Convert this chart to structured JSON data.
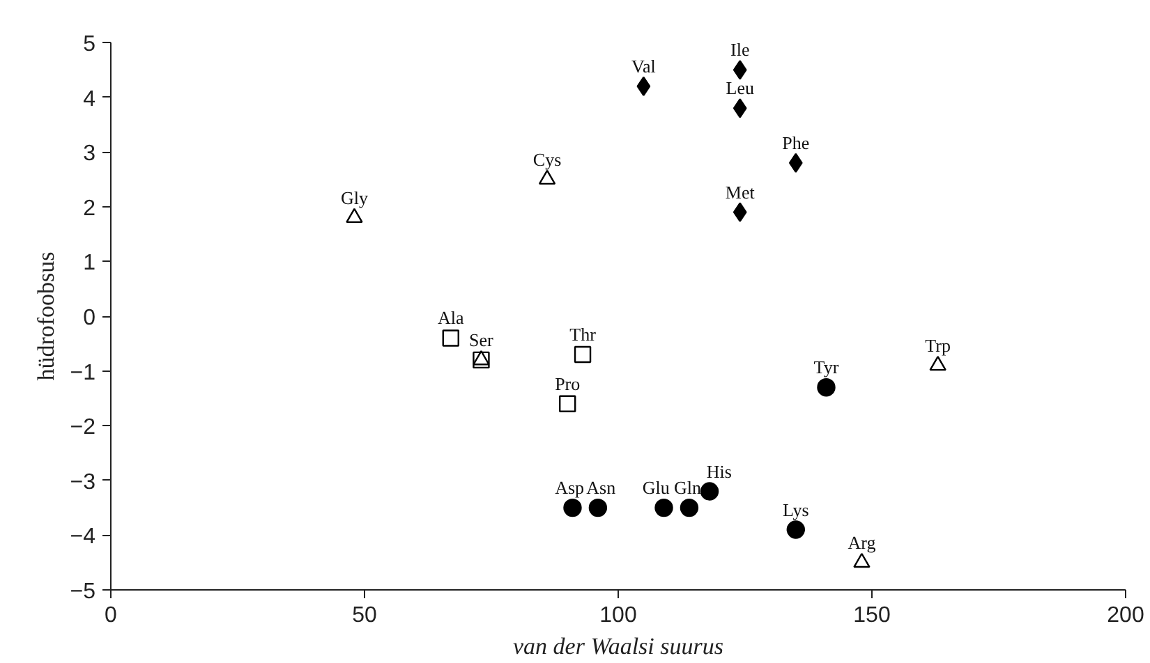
{
  "chart_data": {
    "type": "scatter",
    "xlabel": "van der Waalsi suurus",
    "ylabel": "hüdrofoobsus",
    "xlim": [
      0,
      200
    ],
    "xticks": [
      0,
      50,
      100,
      150,
      200
    ],
    "ylim": [
      -5,
      5
    ],
    "yticks": [
      -5,
      -4,
      -3,
      -2,
      -1,
      0,
      1,
      2,
      3,
      4,
      5
    ],
    "grid": false,
    "series": [
      {
        "marker": "diamond",
        "color": "#000000",
        "x": [
          105,
          124,
          124,
          135,
          124
        ],
        "values": [
          4.2,
          4.5,
          3.8,
          2.8,
          1.9
        ]
      },
      {
        "marker": "triangle",
        "color": "#000000",
        "x": [
          48,
          86,
          73,
          163,
          148
        ],
        "values": [
          1.8,
          2.5,
          -0.8,
          -0.9,
          -4.5
        ]
      },
      {
        "marker": "square",
        "color": "#000000",
        "x": [
          67,
          73,
          93,
          90
        ],
        "values": [
          -0.4,
          -0.8,
          -0.7,
          -1.6
        ]
      },
      {
        "marker": "circle",
        "color": "#000000",
        "x": [
          91,
          96,
          109,
          114,
          118,
          135,
          141
        ],
        "values": [
          -3.5,
          -3.5,
          -3.5,
          -3.5,
          -3.2,
          -3.9,
          -1.3
        ]
      }
    ],
    "annotations": [
      {
        "text": "Val",
        "x": 105,
        "y": 4.2
      },
      {
        "text": "Ile",
        "x": 124,
        "y": 4.5
      },
      {
        "text": "Leu",
        "x": 124,
        "y": 3.8
      },
      {
        "text": "Phe",
        "x": 135,
        "y": 2.8
      },
      {
        "text": "Met",
        "x": 124,
        "y": 1.9
      },
      {
        "text": "Gly",
        "x": 48,
        "y": 1.8
      },
      {
        "text": "Cys",
        "x": 86,
        "y": 2.5
      },
      {
        "text": "Trp",
        "x": 163,
        "y": -0.9
      },
      {
        "text": "Arg",
        "x": 148,
        "y": -4.5
      },
      {
        "text": "Ala",
        "x": 67,
        "y": -0.4
      },
      {
        "text": "Ser",
        "x": 73,
        "y": -0.8
      },
      {
        "text": "Thr",
        "x": 93,
        "y": -0.7
      },
      {
        "text": "Pro",
        "x": 90,
        "y": -1.6
      },
      {
        "text": "Asp",
        "x": 91,
        "y": -3.5
      },
      {
        "text": "Asn",
        "x": 96,
        "y": -3.5
      },
      {
        "text": "Glu",
        "x": 109,
        "y": -3.5
      },
      {
        "text": "Gln",
        "x": 114,
        "y": -3.5
      },
      {
        "text": "His",
        "x": 118,
        "y": -3.2
      },
      {
        "text": "Lys",
        "x": 135,
        "y": -3.9
      },
      {
        "text": "Tyr",
        "x": 141,
        "y": -1.3
      }
    ]
  }
}
